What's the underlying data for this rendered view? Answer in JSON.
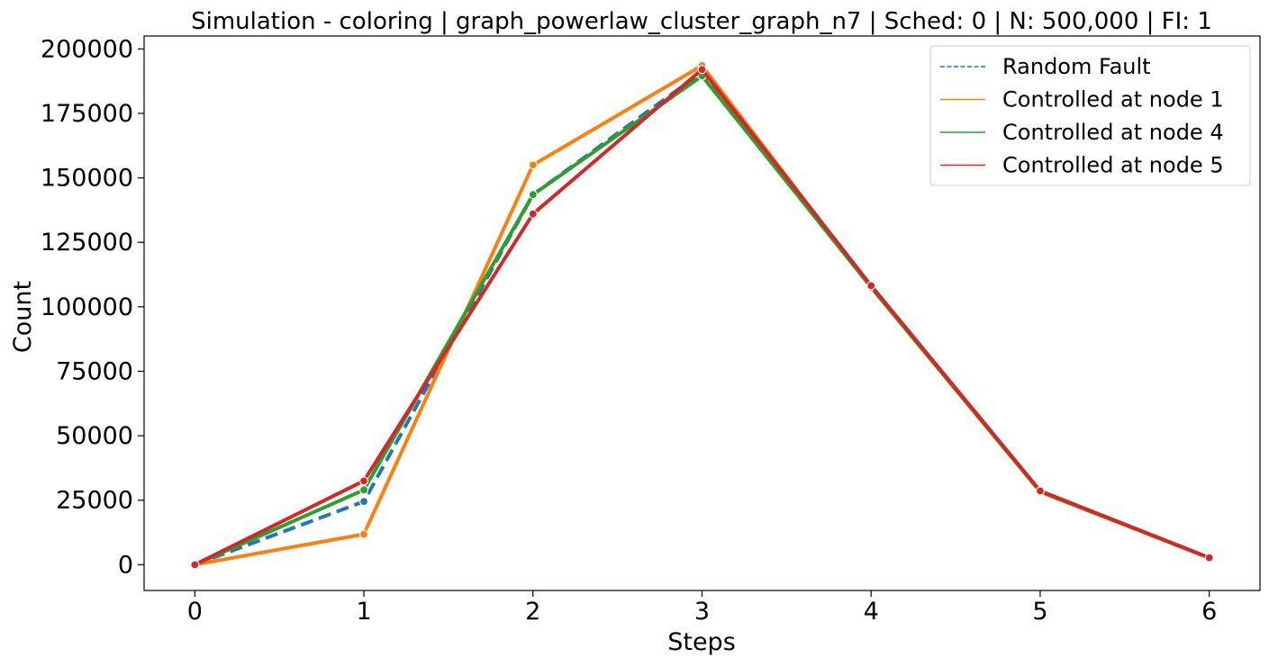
{
  "chart_data": {
    "type": "line",
    "title": "Simulation - coloring | graph_powerlaw_cluster_graph_n7 | Sched: 0 | N: 500,000 | FI: 1",
    "xlabel": "Steps",
    "ylabel": "Count",
    "x": [
      0,
      1,
      2,
      3,
      4,
      5,
      6
    ],
    "xlim": [
      -0.3,
      6.3
    ],
    "ylim": [
      -10000,
      205000
    ],
    "xticks": [
      "0",
      "1",
      "2",
      "3",
      "4",
      "5",
      "6"
    ],
    "yticks": [
      0,
      25000,
      50000,
      75000,
      100000,
      125000,
      150000,
      175000,
      200000
    ],
    "ytick_labels": [
      "0",
      "25000",
      "50000",
      "75000",
      "100000",
      "125000",
      "150000",
      "175000",
      "200000"
    ],
    "grid": false,
    "legend_position": "top-right",
    "series": [
      {
        "name": "Random Fault",
        "color": "#1f77b4",
        "dash": true,
        "values": [
          0,
          24500,
          143500,
          191000,
          107800,
          28500,
          2700
        ]
      },
      {
        "name": "Controlled  at node 1",
        "color": "#ff7f0e",
        "dash": false,
        "values": [
          0,
          11800,
          155000,
          193500,
          107500,
          28200,
          2600
        ]
      },
      {
        "name": "Controlled  at node 4",
        "color": "#2ca02c",
        "dash": false,
        "values": [
          0,
          29000,
          143500,
          189500,
          107600,
          28400,
          2700
        ]
      },
      {
        "name": "Controlled  at node 5",
        "color": "#d62728",
        "dash": false,
        "values": [
          0,
          32500,
          136000,
          192000,
          108200,
          28600,
          2700
        ]
      }
    ]
  }
}
